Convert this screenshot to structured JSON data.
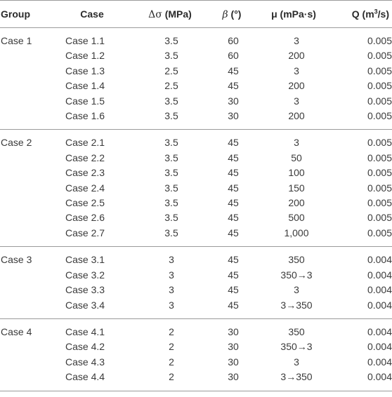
{
  "headers": {
    "group": "Group",
    "case": "Case",
    "delta_sigma_symbol": "Δσ",
    "delta_sigma_unit": " (MPa)",
    "beta_symbol": "β",
    "beta_unit": " (°)",
    "mu": "μ (mPa·s)",
    "q_main": "Q (m",
    "q_sup": "3",
    "q_tail": "/s)"
  },
  "groups": [
    {
      "name": "Case 1",
      "rows": [
        {
          "case": "Case 1.1",
          "ds": "3.5",
          "beta": "60",
          "mu": "3",
          "q": "0.005"
        },
        {
          "case": "Case 1.2",
          "ds": "3.5",
          "beta": "60",
          "mu": "200",
          "q": "0.005"
        },
        {
          "case": "Case 1.3",
          "ds": "2.5",
          "beta": "45",
          "mu": "3",
          "q": "0.005"
        },
        {
          "case": "Case 1.4",
          "ds": "2.5",
          "beta": "45",
          "mu": "200",
          "q": "0.005"
        },
        {
          "case": "Case 1.5",
          "ds": "3.5",
          "beta": "30",
          "mu": "3",
          "q": "0.005"
        },
        {
          "case": "Case 1.6",
          "ds": "3.5",
          "beta": "30",
          "mu": "200",
          "q": "0.005"
        }
      ]
    },
    {
      "name": "Case 2",
      "rows": [
        {
          "case": "Case 2.1",
          "ds": "3.5",
          "beta": "45",
          "mu": "3",
          "q": "0.005"
        },
        {
          "case": "Case 2.2",
          "ds": "3.5",
          "beta": "45",
          "mu": "50",
          "q": "0.005"
        },
        {
          "case": "Case 2.3",
          "ds": "3.5",
          "beta": "45",
          "mu": "100",
          "q": "0.005"
        },
        {
          "case": "Case 2.4",
          "ds": "3.5",
          "beta": "45",
          "mu": "150",
          "q": "0.005"
        },
        {
          "case": "Case 2.5",
          "ds": "3.5",
          "beta": "45",
          "mu": "200",
          "q": "0.005"
        },
        {
          "case": "Case 2.6",
          "ds": "3.5",
          "beta": "45",
          "mu": "500",
          "q": "0.005"
        },
        {
          "case": "Case 2.7",
          "ds": "3.5",
          "beta": "45",
          "mu": "1,000",
          "q": "0.005"
        }
      ]
    },
    {
      "name": "Case 3",
      "rows": [
        {
          "case": "Case 3.1",
          "ds": "3",
          "beta": "45",
          "mu": "350",
          "q": "0.004"
        },
        {
          "case": "Case 3.2",
          "ds": "3",
          "beta": "45",
          "mu": "350→3",
          "q": "0.004"
        },
        {
          "case": "Case 3.3",
          "ds": "3",
          "beta": "45",
          "mu": "3",
          "q": "0.004"
        },
        {
          "case": "Case 3.4",
          "ds": "3",
          "beta": "45",
          "mu": "3→350",
          "q": "0.004"
        }
      ]
    },
    {
      "name": "Case 4",
      "rows": [
        {
          "case": "Case 4.1",
          "ds": "2",
          "beta": "30",
          "mu": "350",
          "q": "0.004"
        },
        {
          "case": "Case 4.2",
          "ds": "2",
          "beta": "30",
          "mu": "350→3",
          "q": "0.004"
        },
        {
          "case": "Case 4.3",
          "ds": "2",
          "beta": "30",
          "mu": "3",
          "q": "0.004"
        },
        {
          "case": "Case 4.4",
          "ds": "2",
          "beta": "30",
          "mu": "3→350",
          "q": "0.004"
        }
      ]
    }
  ]
}
